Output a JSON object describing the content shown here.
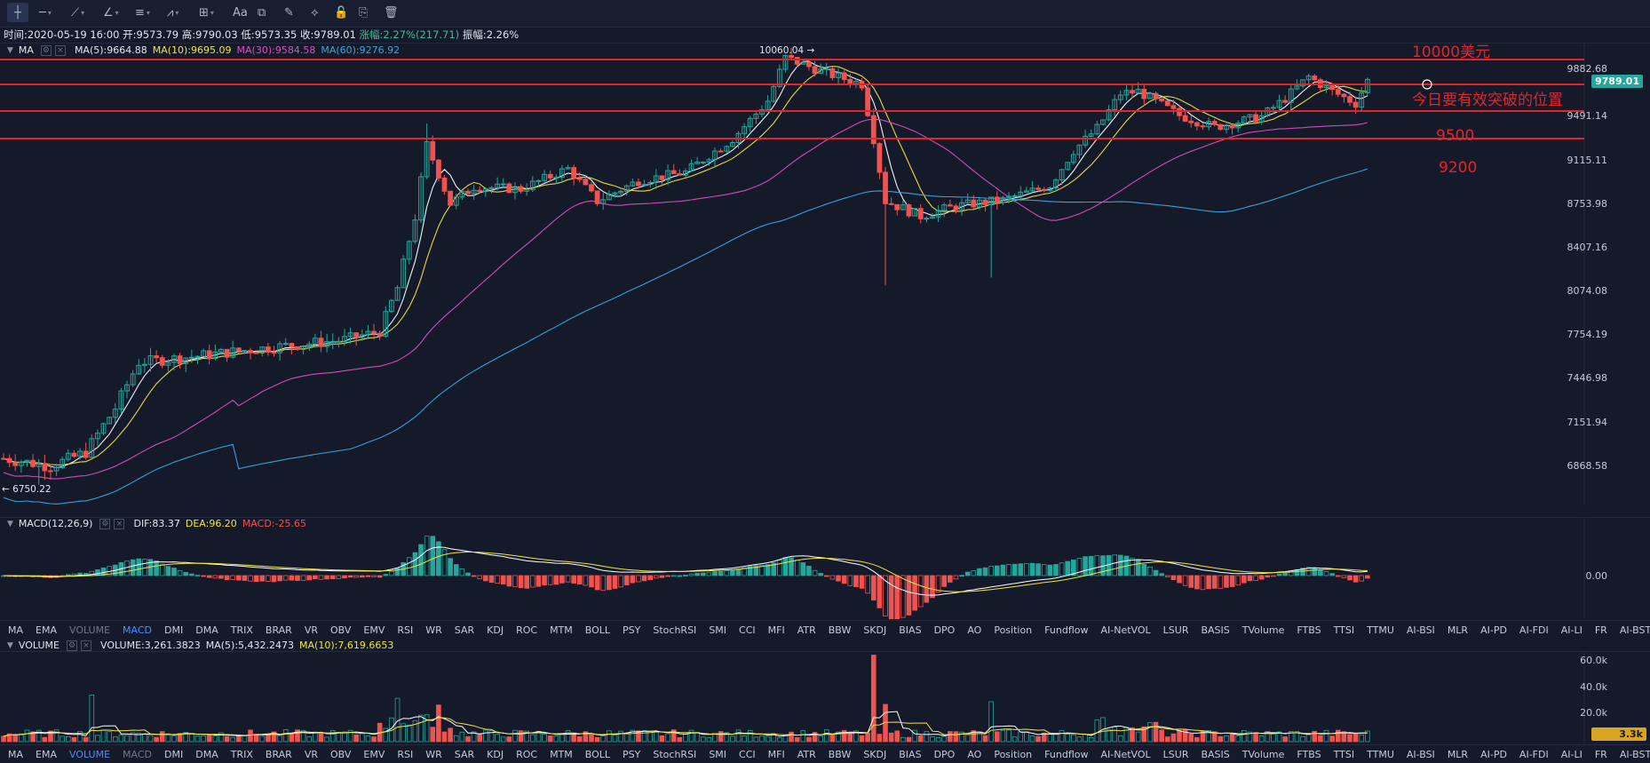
{
  "toolbar": {
    "tools": [
      {
        "name": "crosshair-icon",
        "glyph": "┼"
      },
      {
        "name": "horizontal-line-icon",
        "glyph": "─"
      },
      {
        "name": "trend-line-icon",
        "glyph": "⟋"
      },
      {
        "name": "angle-tool-icon",
        "glyph": "∠"
      },
      {
        "name": "channel-icon",
        "glyph": "≡"
      },
      {
        "name": "wave-icon",
        "glyph": "⩘"
      },
      {
        "name": "measure-icon",
        "glyph": "⊞"
      },
      {
        "name": "text-tool-icon",
        "glyph": "Aa"
      },
      {
        "name": "pattern-icon",
        "glyph": "⧉"
      },
      {
        "name": "brush-icon",
        "glyph": "✎"
      },
      {
        "name": "ruler-icon",
        "glyph": "⟡"
      },
      {
        "name": "lock-icon",
        "glyph": "🔓"
      },
      {
        "name": "copy-icon",
        "glyph": "⎘"
      },
      {
        "name": "trash-icon",
        "glyph": "🗑"
      }
    ]
  },
  "info": {
    "time": "时间:2020-05-19 16:00",
    "open": "开:9573.79",
    "high": "高:9790.03",
    "low": "低:9573.35",
    "close": "收:9789.01",
    "change": "涨幅:2.27%(217.71)",
    "amplitude": "振幅:2.26%"
  },
  "ma": {
    "name": "MA",
    "ma5": "MA(5):9664.88",
    "ma10": "MA(10):9695.09",
    "ma30": "MA(30):9584.58",
    "ma60": "MA(60):9276.92"
  },
  "macd": {
    "name": "MACD(12,26,9)",
    "dif": "DIF:83.37",
    "dea": "DEA:96.20",
    "macd": "MACD:-25.65"
  },
  "volume": {
    "name": "VOLUME",
    "vol": "VOLUME:3,261.3823",
    "ma5": "MA(5):5,432.2473",
    "ma10": "MA(10):7,619.6653"
  },
  "price_axis": [
    "9882.68",
    "9491.14",
    "9115.11",
    "8753.98",
    "8407.16",
    "8074.08",
    "7754.19",
    "7446.98",
    "7151.94",
    "6868.58"
  ],
  "current_price": "9789.01",
  "macd_axis": [
    "0.00"
  ],
  "volume_axis": [
    "60.0k",
    "40.0k",
    "20.0k"
  ],
  "volume_current": "3.3k",
  "annotations": {
    "l10000": "10000美元",
    "today": "今日要有效突破的位置",
    "l9500": "9500",
    "l9200": "9200",
    "high_label": "10060.04 →",
    "low_label": "← 6750.22"
  },
  "indicator_tabs": [
    "MA",
    "EMA",
    "VOLUME",
    "MACD",
    "DMI",
    "DMA",
    "TRIX",
    "BRAR",
    "VR",
    "OBV",
    "EMV",
    "RSI",
    "WR",
    "SAR",
    "KDJ",
    "ROC",
    "MTM",
    "BOLL",
    "PSY",
    "StochRSI",
    "SMI",
    "CCI",
    "MFI",
    "ATR",
    "BBW",
    "SKDJ",
    "BIAS",
    "DPO",
    "AO",
    "Position",
    "Fundflow",
    "AI-NetVOL",
    "LSUR",
    "BASIS",
    "TVolume",
    "FTBS",
    "TTSI",
    "TTMU",
    "AI-BSI",
    "MLR",
    "AI-PD",
    "AI-FDI",
    "AI-LI",
    "FR",
    "AI-BST"
  ],
  "colors": {
    "up": "#26a69a",
    "down": "#ef5350",
    "ma5": "#ffffff",
    "ma10": "#f0e442",
    "ma30": "#d94fbf",
    "ma60": "#3aa6dd",
    "level": "#e0262a"
  }
}
